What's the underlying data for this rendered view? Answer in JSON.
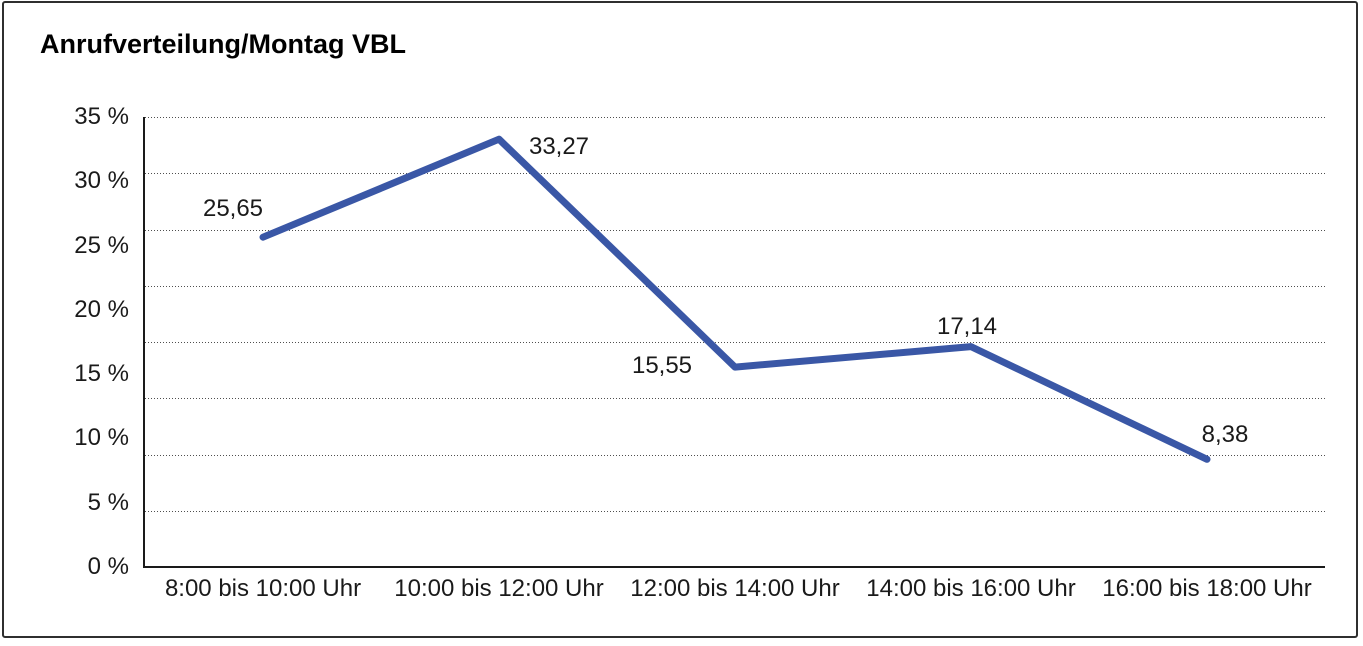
{
  "title": "Anrufverteilung/Montag VBL",
  "chart_data": {
    "type": "line",
    "title": "Anrufverteilung/Montag VBL",
    "categories": [
      "8:00 bis 10:00 Uhr",
      "10:00 bis 12:00 Uhr",
      "12:00 bis 14:00 Uhr",
      "14:00 bis 16:00 Uhr",
      "16:00 bis 18:00 Uhr"
    ],
    "values": [
      25.65,
      33.27,
      15.55,
      17.14,
      8.38
    ],
    "point_labels": [
      "25,65",
      "33,27",
      "15,55",
      "17,14",
      "8,38"
    ],
    "y_tick_labels": [
      "35 %",
      "30 %",
      "25 %",
      "20 %",
      "15 %",
      "10 %",
      "5 %",
      "0 %"
    ],
    "ylim": [
      0,
      35
    ],
    "y_tick_step": 5,
    "xlabel": "",
    "ylabel": "",
    "grid": "horizontal-dotted",
    "legend": "none",
    "line_color": "#3A57A6",
    "axis_color": "#1a1a1a",
    "text_color": "#1a1a1a",
    "frame_color": "#2f2f2f"
  }
}
